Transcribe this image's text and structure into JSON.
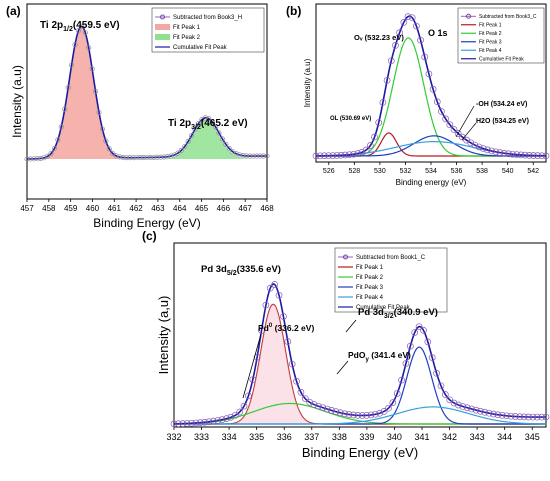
{
  "chart_data": [
    {
      "panel_label": "(a)",
      "type": "line",
      "xlabel": "Binding Energy (eV)",
      "ylabel": "Intensity (a.u)",
      "xlim": [
        457,
        468
      ],
      "x_ticks": [
        457,
        458,
        459,
        460,
        461,
        462,
        463,
        464,
        465,
        466,
        467,
        468
      ],
      "reversed": false,
      "legend": [
        "Subtracted from Book3_H",
        "Fit Peak 1",
        "Fit Peak 2",
        "Cumulative Fit Peak"
      ],
      "legend_position": "top-right",
      "peaks": [
        {
          "center": 459.5,
          "width": 0.55,
          "height": 0.88,
          "color": "#f4a6a0",
          "label_main": "Ti 2p",
          "label_sub": "1/2",
          "label_tail": "(459.5 eV)"
        },
        {
          "center": 465.2,
          "width": 0.6,
          "height": 0.26,
          "color": "#8fe08f",
          "label_main": "Ti 2p",
          "label_sub": "3/2",
          "label_tail": "(465.2 eV)"
        }
      ]
    },
    {
      "panel_label": "(b)",
      "type": "line",
      "xlabel": "Binding energy (eV)",
      "ylabel": "Intensity (a.u)",
      "xlim": [
        525,
        543
      ],
      "x_ticks": [
        526,
        528,
        530,
        532,
        534,
        536,
        538,
        540,
        542
      ],
      "legend": [
        "Subtracted from Book3_C",
        "Fit Peak 1",
        "Fit Peak 2",
        "Fit Peak 3",
        "Fit Peak 4",
        "Cumulative Fit Peak"
      ],
      "legend_position": "top-right",
      "title_annotation": "O 1s",
      "peaks": [
        {
          "center": 530.7,
          "width": 0.6,
          "height": 0.16,
          "color": "#b71c1c",
          "label": "OL (530.69 eV)"
        },
        {
          "center": 532.23,
          "width": 1.2,
          "height": 0.82,
          "color": "#33cc33",
          "label": "Ov (532.23 eV)"
        },
        {
          "center": 534.24,
          "width": 1.6,
          "height": 0.14,
          "color": "#1f3fbf",
          "label": "-OH (534.24 eV)"
        },
        {
          "center": 534.25,
          "width": 3.0,
          "height": 0.1,
          "color": "#39a0e0",
          "label": "H2O (534.25 eV)"
        }
      ]
    },
    {
      "panel_label": "(c)",
      "type": "line",
      "xlabel": "Binding Energy (eV)",
      "ylabel": "Intensity (a,u)",
      "xlim": [
        332,
        345.5
      ],
      "x_ticks": [
        332,
        333,
        334,
        335,
        336,
        337,
        338,
        339,
        340,
        341,
        342,
        343,
        344,
        345
      ],
      "legend": [
        "Subtracted from Book1_C",
        "Fit Peak 1",
        "Fit Peak 2",
        "Fit Peak 3",
        "Fit Peak 4",
        "Cumulative Fit Peak"
      ],
      "legend_position": "top-right",
      "peaks": [
        {
          "center": 335.6,
          "width": 0.45,
          "height": 0.7,
          "color": "#b71c1c",
          "label": "Pd 3d5/2(335.6 eV)"
        },
        {
          "center": 336.2,
          "width": 1.3,
          "height": 0.12,
          "color": "#33cc33",
          "label": "Pd0 (336.2 eV)"
        },
        {
          "center": 340.9,
          "width": 0.45,
          "height": 0.45,
          "color": "#1f3fbf",
          "label": "Pd 3d3/2(340.9 eV)"
        },
        {
          "center": 341.4,
          "width": 1.3,
          "height": 0.1,
          "color": "#39a0e0",
          "label": "PdOy (341.4 eV)"
        }
      ]
    }
  ],
  "colors": {
    "data_marker": "#8a5bb0",
    "cumulative": "#1a1aa6",
    "legend_marker": "#7b3fa6"
  },
  "labels": {
    "a_panel": "(a)",
    "b_panel": "(b)",
    "c_panel": "(c)",
    "b_o1s": "O 1s",
    "b_ov": "Oᵥ (532.23 eV)",
    "b_ol": "OL (530.69 eV)",
    "b_oh": "-OH (534.24 eV)",
    "b_h2o": "H2O (534.25 eV)",
    "c_pd0": "Pd0 (336.2 eV)",
    "c_pd35": "Pd 3d5/2(335.6 eV)",
    "c_pd33": "Pd 3d3/2(340.9 eV)",
    "c_pdo": "PdOy (341.4 eV)"
  }
}
